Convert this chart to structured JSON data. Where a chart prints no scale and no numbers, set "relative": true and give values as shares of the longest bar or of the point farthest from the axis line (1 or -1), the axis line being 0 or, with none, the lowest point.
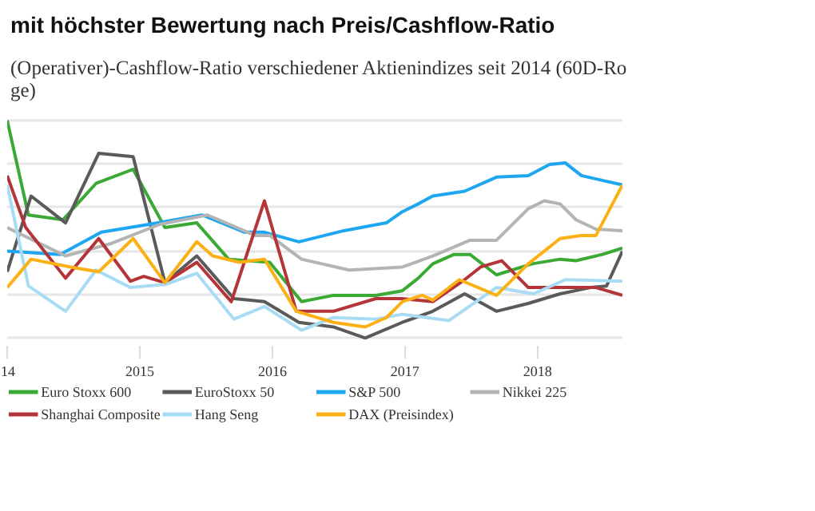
{
  "chart_data": {
    "type": "line",
    "relative": true,
    "title": "mit höchster Bewertung nach Preis/Cashflow-Ratio",
    "subtitle": "(Operativer)-Cashflow-Ratio verschiedener Aktienindizes seit 2014 (60D-Ro\nge)",
    "xlim": [
      2014,
      2018.64
    ],
    "xticks": [
      {
        "value": 2014,
        "label": "14"
      },
      2015,
      2016,
      2017,
      2018
    ],
    "grid": "y",
    "legend": "bottom",
    "marker": "none",
    "line_style": "solid",
    "series": [
      {
        "name": "Euro Stoxx 600",
        "color": "#3aaa35",
        "x": [
          2014.0,
          2014.16,
          2014.42,
          2014.67,
          2014.95,
          2015.19,
          2015.43,
          2015.67,
          2015.98,
          2016.22,
          2016.46,
          2016.78,
          2016.98,
          2017.1,
          2017.21,
          2017.37,
          2017.49,
          2017.69,
          2017.96,
          2018.17,
          2018.29,
          2018.49,
          2018.64
        ],
        "values": [
          1.0,
          0.565,
          0.543,
          0.71,
          0.775,
          0.507,
          0.529,
          0.362,
          0.348,
          0.167,
          0.196,
          0.196,
          0.217,
          0.275,
          0.341,
          0.384,
          0.384,
          0.29,
          0.341,
          0.362,
          0.355,
          0.384,
          0.413
        ]
      },
      {
        "name": "EuroStoxx 50",
        "color": "#5a5a5a",
        "x": [
          2014.0,
          2014.18,
          2014.44,
          2014.69,
          2014.95,
          2015.19,
          2015.43,
          2015.71,
          2015.94,
          2016.2,
          2016.46,
          2016.7,
          2016.98,
          2017.21,
          2017.45,
          2017.69,
          2017.93,
          2018.17,
          2018.4,
          2018.52,
          2018.64
        ],
        "values": [
          0.304,
          0.652,
          0.529,
          0.848,
          0.833,
          0.254,
          0.377,
          0.181,
          0.167,
          0.072,
          0.051,
          0.0,
          0.072,
          0.123,
          0.203,
          0.123,
          0.159,
          0.203,
          0.232,
          0.239,
          0.399
        ]
      },
      {
        "name": "S&P 500",
        "color": "#1ea7f0",
        "x": [
          2014.0,
          2014.4,
          2014.71,
          2015.07,
          2015.47,
          2015.79,
          2015.94,
          2016.2,
          2016.54,
          2016.86,
          2016.98,
          2017.1,
          2017.21,
          2017.45,
          2017.69,
          2017.93,
          2018.09,
          2018.21,
          2018.33,
          2018.48,
          2018.64
        ],
        "values": [
          0.399,
          0.384,
          0.486,
          0.522,
          0.565,
          0.486,
          0.486,
          0.442,
          0.493,
          0.529,
          0.58,
          0.616,
          0.652,
          0.674,
          0.739,
          0.746,
          0.797,
          0.804,
          0.746,
          0.725,
          0.703
        ]
      },
      {
        "name": "Nikkei 225",
        "color": "#b4b4b4",
        "x": [
          2014.0,
          2014.44,
          2014.79,
          2015.15,
          2015.51,
          2015.87,
          2015.98,
          2016.22,
          2016.58,
          2016.98,
          2017.21,
          2017.49,
          2017.69,
          2017.93,
          2018.05,
          2018.17,
          2018.29,
          2018.44,
          2018.64
        ],
        "values": [
          0.507,
          0.377,
          0.435,
          0.522,
          0.565,
          0.471,
          0.471,
          0.362,
          0.312,
          0.326,
          0.377,
          0.449,
          0.449,
          0.594,
          0.63,
          0.616,
          0.543,
          0.5,
          0.493
        ]
      },
      {
        "name": "Shanghai Composite",
        "color": "#b5343a",
        "x": [
          2014.0,
          2014.14,
          2014.44,
          2014.69,
          2014.93,
          2015.03,
          2015.19,
          2015.43,
          2015.69,
          2015.94,
          2016.18,
          2016.46,
          2016.78,
          2016.98,
          2017.21,
          2017.45,
          2017.57,
          2017.73,
          2017.93,
          2018.17,
          2018.44,
          2018.64
        ],
        "values": [
          0.746,
          0.507,
          0.275,
          0.457,
          0.261,
          0.283,
          0.254,
          0.348,
          0.167,
          0.63,
          0.123,
          0.123,
          0.181,
          0.181,
          0.167,
          0.268,
          0.326,
          0.355,
          0.232,
          0.232,
          0.232,
          0.196
        ]
      },
      {
        "name": "Hang Seng",
        "color": "#a8dcf5",
        "x": [
          2014.0,
          2014.16,
          2014.44,
          2014.67,
          2014.93,
          2015.19,
          2015.43,
          2015.71,
          2015.94,
          2016.22,
          2016.46,
          2016.78,
          2016.98,
          2017.33,
          2017.69,
          2017.97,
          2018.21,
          2018.64
        ],
        "values": [
          0.703,
          0.239,
          0.123,
          0.312,
          0.232,
          0.246,
          0.297,
          0.087,
          0.145,
          0.036,
          0.094,
          0.087,
          0.109,
          0.08,
          0.232,
          0.203,
          0.268,
          0.261
        ]
      },
      {
        "name": "DAX (Preisindex)",
        "color": "#fbb116",
        "x": [
          2014.0,
          2014.18,
          2014.48,
          2014.69,
          2014.95,
          2015.19,
          2015.43,
          2015.55,
          2015.75,
          2015.94,
          2016.18,
          2016.46,
          2016.7,
          2016.86,
          2016.98,
          2017.13,
          2017.21,
          2017.41,
          2017.69,
          2017.93,
          2018.17,
          2018.33,
          2018.44,
          2018.64
        ],
        "values": [
          0.232,
          0.362,
          0.326,
          0.304,
          0.457,
          0.254,
          0.442,
          0.377,
          0.348,
          0.362,
          0.123,
          0.072,
          0.051,
          0.094,
          0.167,
          0.196,
          0.174,
          0.268,
          0.196,
          0.341,
          0.457,
          0.471,
          0.471,
          0.703
        ]
      }
    ]
  }
}
